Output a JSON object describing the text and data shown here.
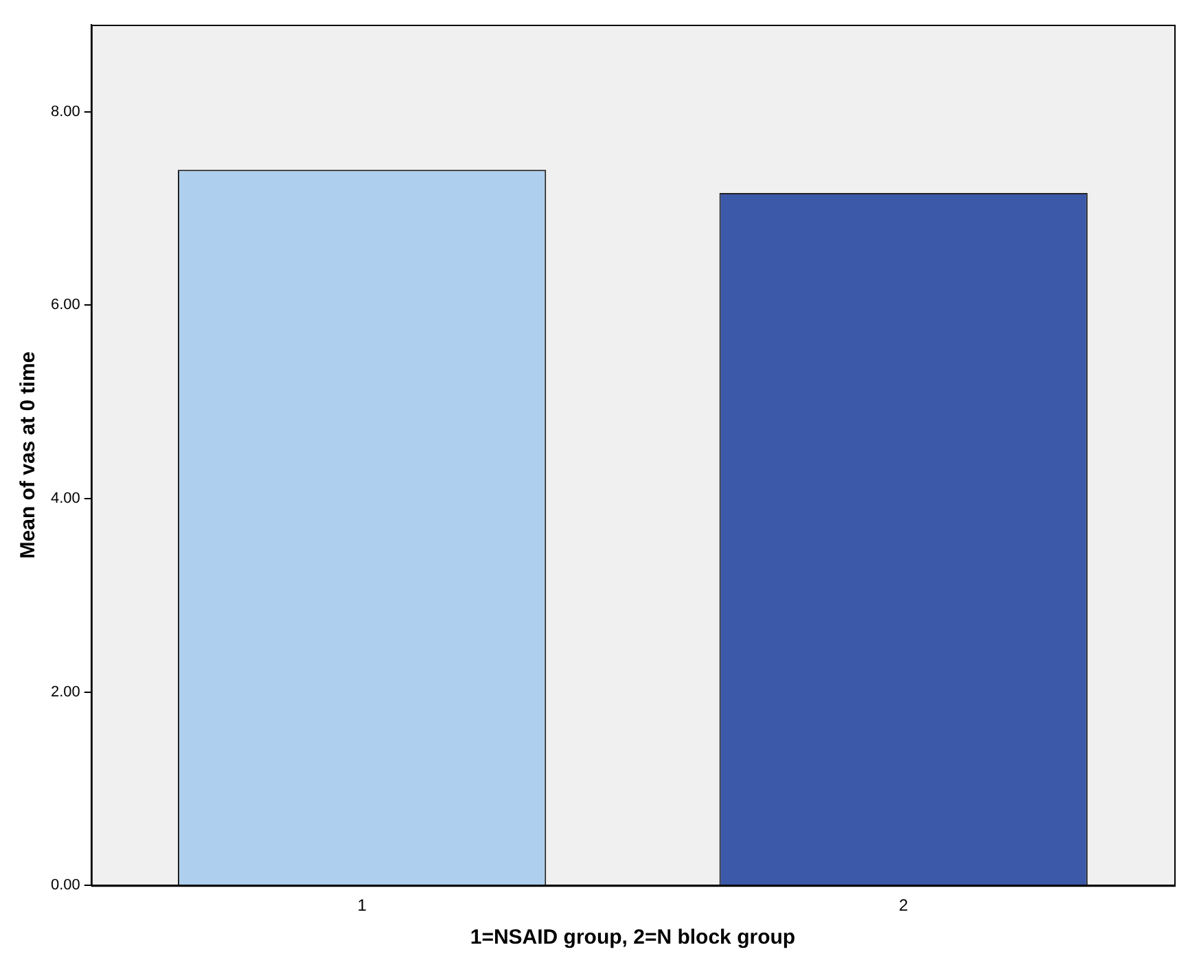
{
  "chart_data": {
    "type": "bar",
    "xlabel": "1=NSAID group, 2=N block group",
    "ylabel": "Mean of vas at 0 time",
    "categories": [
      "1",
      "2"
    ],
    "values": [
      7.4,
      7.16
    ],
    "colors": [
      "#aed0ee",
      "#3c58a8"
    ],
    "ylim": [
      0,
      8.9
    ],
    "yticks": [
      {
        "value": 0,
        "label": "0.00"
      },
      {
        "value": 2,
        "label": "2.00"
      },
      {
        "value": 4,
        "label": "4.00"
      },
      {
        "value": 6,
        "label": "6.00"
      },
      {
        "value": 8,
        "label": "8.00"
      }
    ],
    "grid": false,
    "legend": false
  }
}
